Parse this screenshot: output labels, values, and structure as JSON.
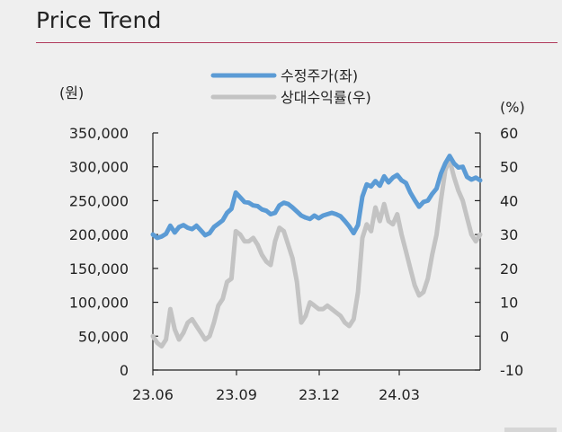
{
  "title": "Price Trend",
  "chart_data": {
    "type": "line",
    "title": "Price Trend",
    "left_unit": "(원)",
    "right_unit": "(%)",
    "x_ticks": [
      "23.06",
      "23.09",
      "23.12",
      "24.03"
    ],
    "y_left": {
      "range": [
        0,
        350000
      ],
      "ticks": [
        "0",
        "50,000",
        "100,000",
        "150,000",
        "200,000",
        "250,000",
        "300,000",
        "350,000"
      ]
    },
    "y_right": {
      "range": [
        -10,
        60
      ],
      "ticks": [
        "-10",
        "0",
        "10",
        "20",
        "30",
        "40",
        "50",
        "60"
      ]
    },
    "legend_position": "top-center",
    "grid": false,
    "series": [
      {
        "name": "수정주가(좌)",
        "axis": "left",
        "color": "#5b9bd5",
        "values": [
          200000,
          195000,
          197000,
          201000,
          213000,
          203000,
          211000,
          214000,
          210000,
          208000,
          213000,
          206000,
          199000,
          202000,
          211000,
          216000,
          221000,
          232000,
          238000,
          262000,
          255000,
          248000,
          247000,
          243000,
          242000,
          237000,
          235000,
          230000,
          232000,
          243000,
          247000,
          245000,
          240000,
          234000,
          228000,
          225000,
          223000,
          228000,
          224000,
          228000,
          230000,
          232000,
          230000,
          227000,
          220000,
          212000,
          202000,
          214000,
          256000,
          274000,
          271000,
          279000,
          272000,
          286000,
          277000,
          284000,
          288000,
          280000,
          276000,
          262000,
          251000,
          241000,
          248000,
          250000,
          260000,
          268000,
          290000,
          305000,
          316000,
          305000,
          299000,
          300000,
          285000,
          281000,
          284000,
          280000
        ]
      },
      {
        "name": "상대수익률(우)",
        "axis": "right",
        "color": "#c3c3c3",
        "values": [
          0,
          -2,
          -3,
          -1,
          8,
          2,
          -1,
          1,
          4,
          5,
          3,
          1,
          -1,
          0,
          4,
          9,
          11,
          16,
          17,
          31,
          30,
          28,
          28,
          29,
          27,
          24,
          22,
          21,
          28,
          32,
          31,
          27,
          23,
          16,
          4,
          6,
          10,
          9,
          8,
          8,
          9,
          8,
          7,
          6,
          4,
          3,
          5,
          13,
          29,
          33,
          31,
          38,
          34,
          39,
          34,
          33,
          36,
          30,
          25,
          20,
          15,
          12,
          13,
          17,
          24,
          30,
          40,
          49,
          52,
          47,
          43,
          40,
          35,
          30,
          28,
          30
        ]
      }
    ]
  }
}
